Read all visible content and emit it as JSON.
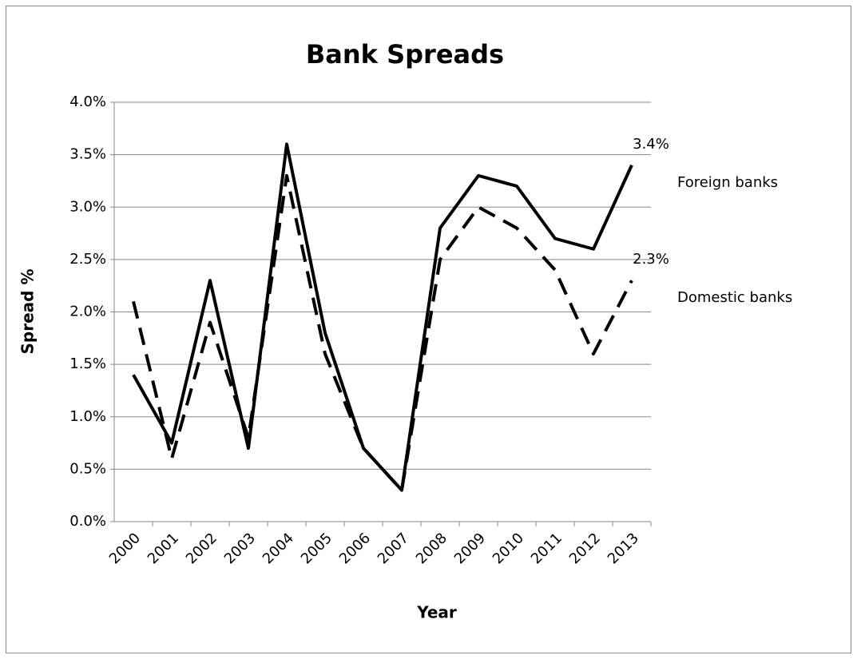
{
  "chart_data": {
    "type": "line",
    "title": "Bank Spreads",
    "x_label": "Year",
    "y_label": "Spread %",
    "categories": [
      "2000",
      "2001",
      "2002",
      "2003",
      "2004",
      "2005",
      "2006",
      "2007",
      "2008",
      "2009",
      "2010",
      "2011",
      "2012",
      "2013"
    ],
    "series": [
      {
        "name": "Foreign banks",
        "color": "#000000",
        "dash": "solid",
        "values": [
          1.4,
          0.75,
          2.3,
          0.7,
          3.6,
          1.8,
          0.7,
          0.3,
          2.8,
          3.3,
          3.2,
          2.7,
          2.6,
          3.4
        ],
        "value_labels": [
          null,
          null,
          null,
          null,
          null,
          null,
          null,
          null,
          null,
          null,
          null,
          null,
          null,
          "3.4%"
        ]
      },
      {
        "name": "Domestic banks",
        "color": "#000000",
        "dash": "dashed",
        "values": [
          2.1,
          0.6,
          1.9,
          0.8,
          3.3,
          1.6,
          0.7,
          0.3,
          2.5,
          3.0,
          2.8,
          2.4,
          1.6,
          2.3
        ],
        "value_labels": [
          null,
          null,
          null,
          null,
          null,
          null,
          null,
          null,
          null,
          null,
          null,
          null,
          null,
          "2.3%"
        ]
      }
    ],
    "ylim": [
      0,
      4
    ],
    "yticks": [
      {
        "value": 0,
        "label": "0.0%"
      },
      {
        "value": 0.5,
        "label": "0.5%"
      },
      {
        "value": 1,
        "label": "1.0%"
      },
      {
        "value": 1.5,
        "label": "1.5%"
      },
      {
        "value": 2,
        "label": "2.0%"
      },
      {
        "value": 2.5,
        "label": "2.5%"
      },
      {
        "value": 3,
        "label": "3.0%"
      },
      {
        "value": 3.5,
        "label": "3.5%"
      },
      {
        "value": 4,
        "label": "4.0%"
      }
    ],
    "grid": true
  }
}
